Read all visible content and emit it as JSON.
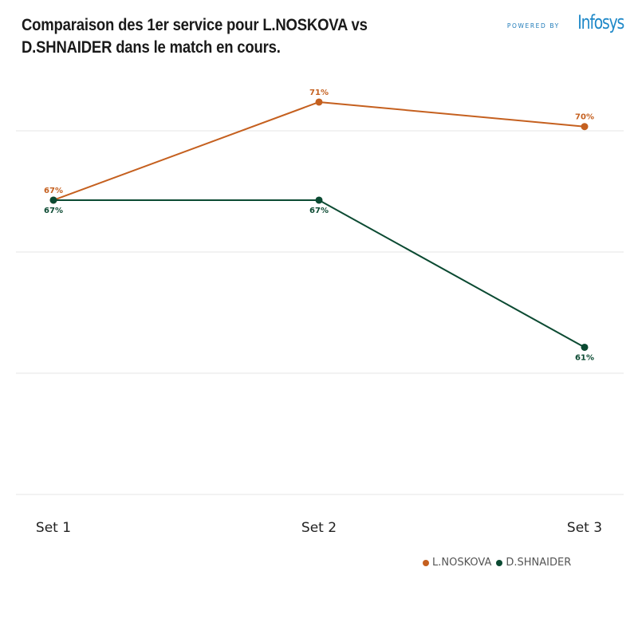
{
  "header": {
    "title": "Comparaison des 1er service pour L.NOSKOVA vs D.SHNAIDER dans le match en cours.",
    "powered_by": "POWERED BY",
    "logo_text": "Infosys"
  },
  "colors": {
    "noskova": "#c5601f",
    "shnaider": "#0b4a32",
    "grid": "#e4e4e4"
  },
  "chart_data": {
    "type": "line",
    "title": "Comparaison des 1er service pour L.NOSKOVA vs D.SHNAIDER dans le match en cours.",
    "categories": [
      "Set 1",
      "Set 2",
      "Set 3"
    ],
    "series": [
      {
        "name": "L.NOSKOVA",
        "values": [
          67,
          71,
          70
        ],
        "labels": [
          "67%",
          "71%",
          "70%"
        ],
        "color": "#c5601f"
      },
      {
        "name": "D.SHNAIDER",
        "values": [
          67,
          67,
          61
        ],
        "labels": [
          "67%",
          "67%",
          "61%"
        ],
        "color": "#0b4a32"
      }
    ],
    "ylim": [
      55,
      72.3
    ],
    "grid": true,
    "legend": "bottom-right",
    "xlabel": "",
    "ylabel": ""
  }
}
